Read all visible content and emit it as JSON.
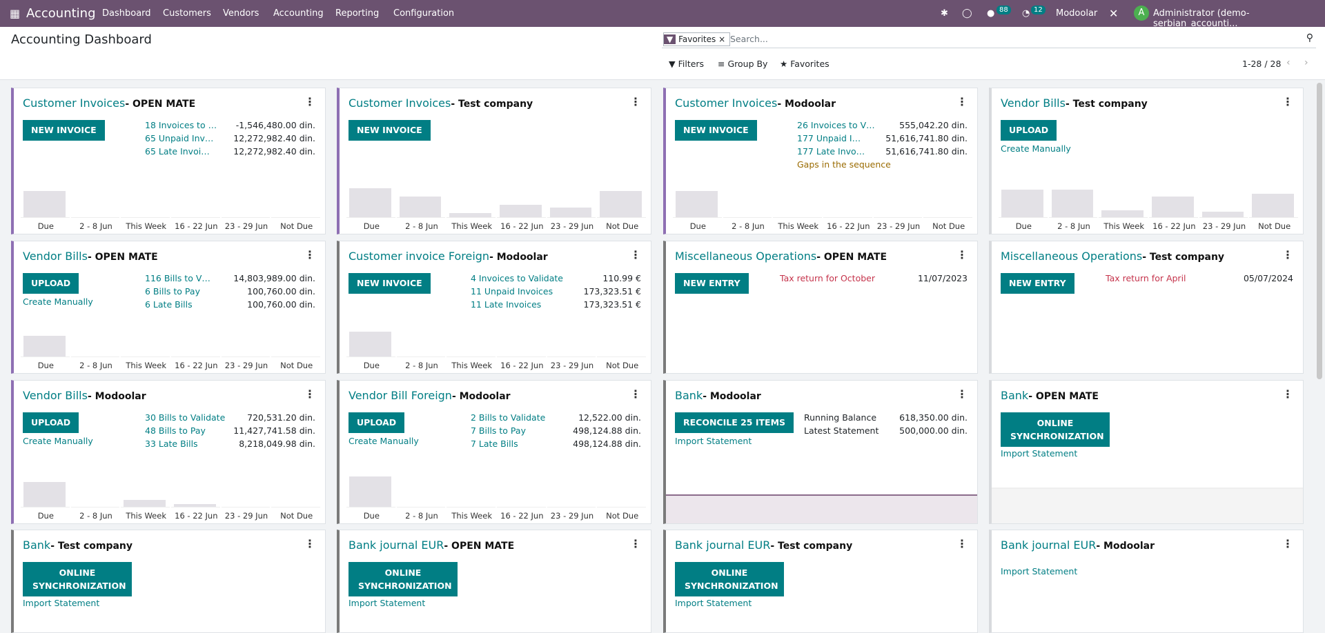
{
  "navbar": {
    "app": "Accounting",
    "menus": [
      "Dashboard",
      "Customers",
      "Vendors",
      "Accounting",
      "Reporting",
      "Configuration"
    ],
    "messages_badge": "88",
    "activities_badge": "12",
    "company": "Modoolar",
    "avatar": "A",
    "user": "Administrator (demo-serbian_accounti..."
  },
  "control_panel": {
    "title": "Accounting Dashboard",
    "facet": "Favorites",
    "search_placeholder": "Search...",
    "filters": "Filters",
    "group_by": "Group By",
    "favorites": "Favorites",
    "pager": "1-28 / 28"
  },
  "cards": [
    {
      "title": "Customer Invoices",
      "company": "- OPEN MATE",
      "accent": "#8e6fb3",
      "buttons": [
        "NEW INVOICE"
      ],
      "row_style": "link",
      "rows": [
        [
          "18 Invoices to …",
          "-1,546,480.00 din."
        ],
        [
          "65 Unpaid Inv…",
          "12,272,982.40 din."
        ],
        [
          "65 Late Invoi…",
          "12,272,982.40 din."
        ]
      ],
      "graph": "bar",
      "graph_labels": [
        "Due",
        "2 - 8 Jun",
        "This Week",
        "16 - 22 Jun",
        "23 - 29 Jun",
        "Not Due"
      ]
    },
    {
      "title": "Customer Invoices",
      "company": "- Test company",
      "accent": "#8e6fb3",
      "buttons": [
        "NEW INVOICE"
      ],
      "graph": "bar",
      "graph_labels": [
        "Due",
        "2 - 8 Jun",
        "This Week",
        "16 - 22 Jun",
        "23 - 29 Jun",
        "Not Due"
      ]
    },
    {
      "title": "Customer Invoices",
      "company": "- Modoolar",
      "accent": "#8e6fb3",
      "buttons": [
        "NEW INVOICE"
      ],
      "row_style": "link",
      "rows": [
        [
          "26 Invoices to V…",
          "555,042.20 din."
        ],
        [
          "177 Unpaid I…",
          "51,616,741.80 din."
        ],
        [
          "177 Late Invo…",
          "51,616,741.80 din."
        ]
      ],
      "warning": "Gaps in the sequence",
      "graph": "bar",
      "graph_labels": [
        "Due",
        "2 - 8 Jun",
        "This Week",
        "16 - 22 Jun",
        "23 - 29 Jun",
        "Not Due"
      ]
    },
    {
      "title": "Vendor Bills",
      "company": "- Test company",
      "accent": "#d8dadd",
      "buttons": [
        "UPLOAD"
      ],
      "links": [
        "Create Manually"
      ],
      "graph": "bar",
      "graph_labels": [
        "Due",
        "2 - 8 Jun",
        "This Week",
        "16 - 22 Jun",
        "23 - 29 Jun",
        "Not Due"
      ]
    },
    {
      "title": "Vendor Bills",
      "company": "- OPEN MATE",
      "accent": "#8e6fb3",
      "buttons": [
        "UPLOAD"
      ],
      "links": [
        "Create Manually"
      ],
      "row_style": "link",
      "rows": [
        [
          "116 Bills to V…",
          "14,803,989.00 din."
        ],
        [
          "6 Bills to Pay",
          "100,760.00 din."
        ],
        [
          "6 Late Bills",
          "100,760.00 din."
        ]
      ],
      "graph": "bar",
      "graph_labels": [
        "Due",
        "2 - 8 Jun",
        "This Week",
        "16 - 22 Jun",
        "23 - 29 Jun",
        "Not Due"
      ]
    },
    {
      "title": "Customer invoice Foreign",
      "company": "- Modoolar",
      "accent": "#7a7a7a",
      "buttons": [
        "NEW INVOICE"
      ],
      "row_style": "link",
      "rows": [
        [
          "4 Invoices to Validate",
          "110.99 €"
        ],
        [
          "11 Unpaid Invoices",
          "173,323.51 €"
        ],
        [
          "11 Late Invoices",
          "173,323.51 €"
        ]
      ],
      "graph": "bar",
      "graph_labels": [
        "Due",
        "2 - 8 Jun",
        "This Week",
        "16 - 22 Jun",
        "23 - 29 Jun",
        "Not Due"
      ]
    },
    {
      "title": "Miscellaneous Operations",
      "company": "- OPEN MATE",
      "accent": "#7a7a7a",
      "buttons": [
        "NEW ENTRY"
      ],
      "row_style": "danger",
      "rows": [
        [
          "Tax return for October",
          "11/07/2023"
        ]
      ]
    },
    {
      "title": "Miscellaneous Operations",
      "company": "- Test company",
      "accent": "#d8dadd",
      "buttons": [
        "NEW ENTRY"
      ],
      "row_style": "danger",
      "rows": [
        [
          "Tax return for April",
          "05/07/2024"
        ]
      ]
    },
    {
      "title": "Vendor Bills",
      "company": "- Modoolar",
      "accent": "#8e6fb3",
      "buttons": [
        "UPLOAD"
      ],
      "links": [
        "Create Manually"
      ],
      "row_style": "link",
      "rows": [
        [
          "30 Bills to Validate",
          "720,531.20 din."
        ],
        [
          "48 Bills to Pay",
          "11,427,741.58 din."
        ],
        [
          "33 Late Bills",
          "8,218,049.98 din."
        ]
      ],
      "graph": "bar",
      "graph_labels": [
        "Due",
        "2 - 8 Jun",
        "This Week",
        "16 - 22 Jun",
        "23 - 29 Jun",
        "Not Due"
      ]
    },
    {
      "title": "Vendor Bill Foreign",
      "company": "- Modoolar",
      "accent": "#7a7a7a",
      "buttons": [
        "UPLOAD"
      ],
      "links": [
        "Create Manually"
      ],
      "row_style": "link",
      "rows": [
        [
          "2 Bills to Validate",
          "12,522.00 din."
        ],
        [
          "7 Bills to Pay",
          "498,124.88 din."
        ],
        [
          "7 Late Bills",
          "498,124.88 din."
        ]
      ],
      "graph": "bar",
      "graph_labels": [
        "Due",
        "2 - 8 Jun",
        "This Week",
        "16 - 22 Jun",
        "23 - 29 Jun",
        "Not Due"
      ]
    },
    {
      "title": "Bank",
      "company": "- Modoolar",
      "accent": "#7a7a7a",
      "buttons": [
        "RECONCILE 25 ITEMS"
      ],
      "links": [
        "Import Statement"
      ],
      "row_style": "plain",
      "rows": [
        [
          "Running Balance",
          "618,350.00 din."
        ],
        [
          "Latest Statement",
          "500,000.00 din."
        ]
      ],
      "graph": "line"
    },
    {
      "title": "Bank",
      "company": "- OPEN MATE",
      "accent": "#d8dadd",
      "buttons": [
        "ONLINE SYNCHRONIZATION"
      ],
      "links": [
        "Import Statement"
      ],
      "graph": "line"
    },
    {
      "title": "Bank",
      "company": "- Test company",
      "accent": "#7a7a7a",
      "buttons": [
        "ONLINE SYNCHRONIZATION"
      ],
      "links": [
        "Import Statement"
      ]
    },
    {
      "title": "Bank journal EUR",
      "company": "- OPEN MATE",
      "accent": "#7a7a7a",
      "buttons": [
        "ONLINE SYNCHRONIZATION"
      ],
      "links": [
        "Import Statement"
      ]
    },
    {
      "title": "Bank journal EUR",
      "company": "- Test company",
      "accent": "#7a7a7a",
      "buttons": [
        "ONLINE SYNCHRONIZATION"
      ],
      "links": [
        "Import Statement"
      ]
    },
    {
      "title": "Bank journal EUR",
      "company": "- Modoolar",
      "accent": "#d8dadd",
      "links": [
        "Import Statement"
      ]
    }
  ]
}
